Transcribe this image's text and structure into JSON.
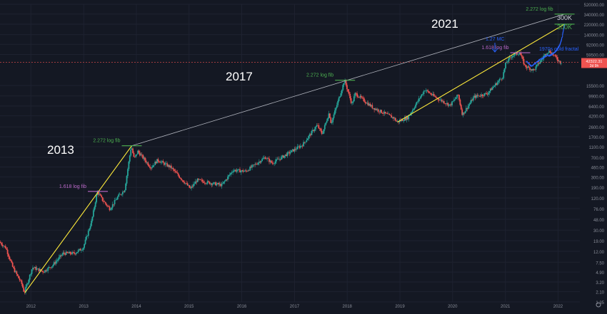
{
  "chart_data": {
    "type": "candlestick",
    "y_scale": "log",
    "ylim": [
      1.35,
      520000
    ],
    "xlim": [
      "2011-06-01",
      "2022-06-01"
    ],
    "y_ticks": [
      "520000.00",
      "340000.00",
      "220000.00",
      "140000.00",
      "92000.00",
      "59500.00",
      "15500.00",
      "9900.00",
      "6400.00",
      "4200.00",
      "2600.00",
      "1700.00",
      "1100.00",
      "700.00",
      "460.00",
      "300.00",
      "190.00",
      "120.00",
      "76.00",
      "48.00",
      "30.00",
      "19.00",
      "12.00",
      "7.50",
      "4.90",
      "3.20",
      "2.10",
      "1.35"
    ],
    "x_ticks": [
      "2012",
      "2013",
      "2014",
      "2015",
      "2016",
      "2017",
      "2018",
      "2019",
      "2020",
      "2021",
      "2022"
    ],
    "current_price": {
      "label": "42322.31",
      "sublabel": "2d 9h",
      "value": 42322.31
    },
    "colors": {
      "up": "#26a69a",
      "down": "#ef5350",
      "fractal": "#2962ff",
      "trend": "#ffeb3b",
      "resistance": "#b2b5be",
      "fib_green": "#4caf50",
      "fib_purple": "#ba68c8",
      "background": "#141823"
    },
    "price_path": [
      [
        "2011-06-01",
        18
      ],
      [
        "2011-07-15",
        14
      ],
      [
        "2011-09-01",
        6
      ],
      [
        "2011-11-01",
        3
      ],
      [
        "2011-11-20",
        2.0
      ],
      [
        "2012-01-15",
        6
      ],
      [
        "2012-04-01",
        5
      ],
      [
        "2012-06-01",
        6.5
      ],
      [
        "2012-08-15",
        11
      ],
      [
        "2012-11-01",
        11
      ],
      [
        "2013-01-01",
        14
      ],
      [
        "2013-03-01",
        45
      ],
      [
        "2013-04-09",
        160
      ],
      [
        "2013-05-15",
        110
      ],
      [
        "2013-07-05",
        75
      ],
      [
        "2013-09-01",
        130
      ],
      [
        "2013-10-15",
        170
      ],
      [
        "2013-11-30",
        1150
      ],
      [
        "2013-12-20",
        650
      ],
      [
        "2014-01-15",
        900
      ],
      [
        "2014-04-15",
        450
      ],
      [
        "2014-06-01",
        620
      ],
      [
        "2014-09-01",
        450
      ],
      [
        "2015-01-14",
        180
      ],
      [
        "2015-03-01",
        260
      ],
      [
        "2015-06-01",
        230
      ],
      [
        "2015-08-20",
        210
      ],
      [
        "2015-11-05",
        400
      ],
      [
        "2016-02-01",
        380
      ],
      [
        "2016-06-15",
        700
      ],
      [
        "2016-08-02",
        540
      ],
      [
        "2016-12-31",
        960
      ],
      [
        "2017-03-01",
        1200
      ],
      [
        "2017-06-10",
        2800
      ],
      [
        "2017-07-15",
        1900
      ],
      [
        "2017-09-01",
        4800
      ],
      [
        "2017-09-15",
        3000
      ],
      [
        "2017-12-17",
        19500
      ],
      [
        "2018-02-06",
        6900
      ],
      [
        "2018-03-01",
        11000
      ],
      [
        "2018-06-30",
        6000
      ],
      [
        "2018-11-25",
        3800
      ],
      [
        "2018-12-15",
        3200
      ],
      [
        "2019-03-01",
        3900
      ],
      [
        "2019-06-26",
        13000
      ],
      [
        "2019-09-01",
        9600
      ],
      [
        "2019-12-18",
        6600
      ],
      [
        "2020-02-12",
        10300
      ],
      [
        "2020-03-13",
        4400
      ],
      [
        "2020-06-01",
        9500
      ],
      [
        "2020-09-01",
        11000
      ],
      [
        "2020-12-17",
        23000
      ],
      [
        "2021-01-08",
        41000
      ],
      [
        "2021-02-21",
        57000
      ],
      [
        "2021-04-14",
        64000
      ],
      [
        "2021-05-20",
        36000
      ],
      [
        "2021-07-20",
        30000
      ],
      [
        "2021-10-20",
        66000
      ],
      [
        "2021-11-10",
        68000
      ],
      [
        "2022-01-20",
        42322
      ]
    ],
    "fractal_path": [
      [
        "2021-05-25",
        45000
      ],
      [
        "2021-07-01",
        36000
      ],
      [
        "2021-09-01",
        48000
      ],
      [
        "2021-10-15",
        56000
      ],
      [
        "2021-11-15",
        58000
      ],
      [
        "2021-12-15",
        66000
      ],
      [
        "2022-01-15",
        90000
      ],
      [
        "2022-02-01",
        130000
      ],
      [
        "2022-02-15",
        220000
      ]
    ],
    "trendlines": [
      {
        "name": "support",
        "from": [
          "2011-11-20",
          2.0
        ],
        "to": [
          "2013-11-30",
          1150
        ]
      },
      {
        "name": "support",
        "from": [
          "2018-12-15",
          3200
        ],
        "to": [
          "2022-02-15",
          220000
        ]
      },
      {
        "name": "resistance",
        "from": [
          "2013-11-30",
          1150
        ],
        "to": [
          "2022-02-15",
          340000
        ]
      }
    ],
    "horizontal_lines": [
      {
        "name": "current",
        "y": 42322
      }
    ],
    "levels": [
      {
        "text": "1.618 log fib",
        "color": "#ba68c8",
        "date": "2013-04-09",
        "y": 160
      },
      {
        "text": "2.272 log fib",
        "color": "#4caf50",
        "date": "2013-11-30",
        "y": 1150
      },
      {
        "text": "2.272 log fib",
        "color": "#4caf50",
        "date": "2017-12-17",
        "y": 19500
      },
      {
        "text": "1.618 log fib",
        "color": "#ba68c8",
        "date": "2021-04-14",
        "y": 64000
      },
      {
        "text": "2.272 log fib",
        "color": "#4caf50",
        "date": "2022-02-15",
        "y": 340000
      },
      {
        "text": "",
        "color": "#4caf50",
        "date": "2022-02-15",
        "y": 220000
      }
    ],
    "annotations": [
      {
        "name": "label-2013",
        "text": "2013"
      },
      {
        "name": "label-2017",
        "text": "2017"
      },
      {
        "name": "label-2021",
        "text": "2021"
      },
      {
        "name": "label-300k",
        "text": "300K"
      },
      {
        "name": "label-200k",
        "text": "200K"
      },
      {
        "name": "label-127mc",
        "text": "1.27 MC"
      },
      {
        "name": "label-fractal",
        "text": "1970s gold fractal"
      }
    ]
  }
}
